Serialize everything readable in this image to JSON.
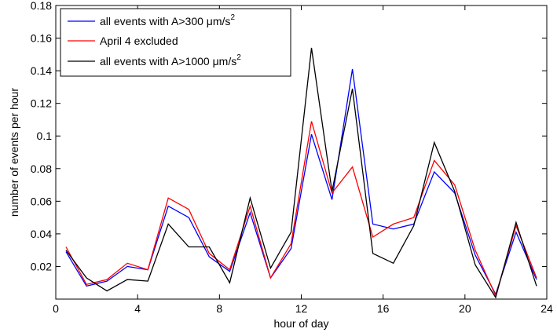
{
  "chart_data": {
    "type": "line",
    "title": "",
    "xlabel": "hour of day",
    "ylabel": "number of events per hour",
    "xlim": [
      0,
      24
    ],
    "ylim": [
      0,
      0.18
    ],
    "xticks": [
      0,
      4,
      8,
      12,
      16,
      20,
      24
    ],
    "xtick_labels": [
      "0",
      "4",
      "8",
      "12",
      "16",
      "20",
      "24"
    ],
    "yticks": [
      0.02,
      0.04,
      0.06,
      0.08,
      0.1,
      0.12,
      0.14,
      0.16,
      0.18
    ],
    "ytick_labels": [
      "0.02",
      "0.04",
      "0.06",
      "0.08",
      "0.1",
      "0.12",
      "0.14",
      "0.16",
      "0.18"
    ],
    "grid": false,
    "legend_position": "top-left",
    "x": [
      0.5,
      1.5,
      2.5,
      3.5,
      4.5,
      5.5,
      6.5,
      7.5,
      8.5,
      9.5,
      10.5,
      11.5,
      12.5,
      13.5,
      14.5,
      15.5,
      16.5,
      17.5,
      18.5,
      19.5,
      20.5,
      21.5,
      22.5,
      23.5
    ],
    "series": [
      {
        "name": "all events with A>300 μm/s",
        "name_superscript": "2",
        "color": "#0000ff",
        "values": [
          0.029,
          0.008,
          0.011,
          0.02,
          0.018,
          0.057,
          0.05,
          0.026,
          0.017,
          0.053,
          0.013,
          0.031,
          0.101,
          0.061,
          0.141,
          0.046,
          0.043,
          0.046,
          0.078,
          0.065,
          0.027,
          0.003,
          0.041,
          0.012
        ]
      },
      {
        "name": "April 4 excluded",
        "name_superscript": "",
        "color": "#ff0000",
        "values": [
          0.032,
          0.009,
          0.012,
          0.022,
          0.018,
          0.062,
          0.055,
          0.028,
          0.018,
          0.057,
          0.013,
          0.034,
          0.109,
          0.065,
          0.081,
          0.038,
          0.046,
          0.05,
          0.085,
          0.07,
          0.03,
          0.002,
          0.045,
          0.013
        ]
      },
      {
        "name": "all events with A>1000 μm/s",
        "name_superscript": "2",
        "color": "#000000",
        "values": [
          0.03,
          0.013,
          0.005,
          0.012,
          0.011,
          0.046,
          0.032,
          0.032,
          0.01,
          0.062,
          0.019,
          0.041,
          0.154,
          0.066,
          0.129,
          0.028,
          0.022,
          0.045,
          0.096,
          0.066,
          0.021,
          0.001,
          0.047,
          0.008
        ]
      }
    ]
  }
}
